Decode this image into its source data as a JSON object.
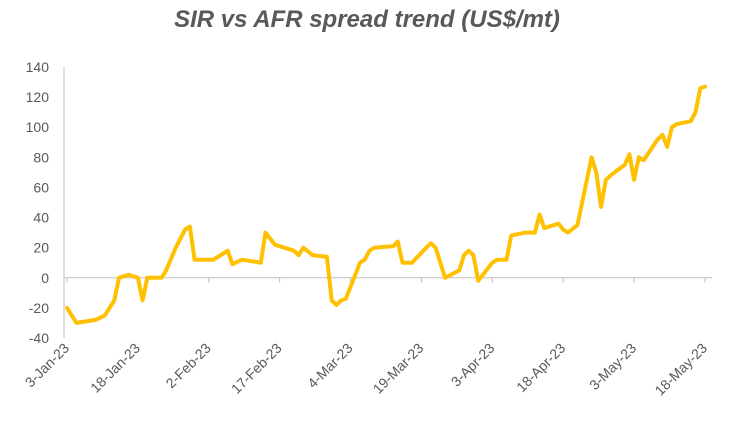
{
  "chart_data": {
    "type": "line",
    "title": "SIR vs AFR spread trend (US$/mt)",
    "xlabel": "",
    "ylabel": "",
    "ylim": [
      -40,
      140
    ],
    "yticks": [
      "140",
      "120",
      "100",
      "80",
      "60",
      "40",
      "20",
      "0",
      "-20",
      "-40"
    ],
    "xticks": [
      "3-Jan-23",
      "18-Jan-23",
      "2-Feb-23",
      "17-Feb-23",
      "4-Mar-23",
      "19-Mar-23",
      "3-Apr-23",
      "18-Apr-23",
      "3-May-23",
      "18-May-23"
    ],
    "xlim": [
      "2023-01-03",
      "2023-05-18"
    ],
    "grid": false,
    "legend": "none",
    "line_color": "#FFC000",
    "series": [
      {
        "points": [
          [
            "2023-01-03",
            -20
          ],
          [
            "2023-01-05",
            -30
          ],
          [
            "2023-01-09",
            -28
          ],
          [
            "2023-01-11",
            -25
          ],
          [
            "2023-01-13",
            -15
          ],
          [
            "2023-01-14",
            0
          ],
          [
            "2023-01-16",
            2
          ],
          [
            "2023-01-18",
            0
          ],
          [
            "2023-01-19",
            -15
          ],
          [
            "2023-01-20",
            0
          ],
          [
            "2023-01-23",
            0
          ],
          [
            "2023-01-24",
            5
          ],
          [
            "2023-01-26",
            20
          ],
          [
            "2023-01-28",
            32
          ],
          [
            "2023-01-29",
            34
          ],
          [
            "2023-01-30",
            12
          ],
          [
            "2023-01-31",
            12
          ],
          [
            "2023-02-03",
            12
          ],
          [
            "2023-02-06",
            18
          ],
          [
            "2023-02-07",
            9
          ],
          [
            "2023-02-09",
            12
          ],
          [
            "2023-02-13",
            10
          ],
          [
            "2023-02-14",
            30
          ],
          [
            "2023-02-16",
            22
          ],
          [
            "2023-02-20",
            18
          ],
          [
            "2023-02-21",
            15
          ],
          [
            "2023-02-22",
            20
          ],
          [
            "2023-02-24",
            15
          ],
          [
            "2023-02-27",
            14
          ],
          [
            "2023-02-28",
            -15
          ],
          [
            "2023-03-01",
            -18
          ],
          [
            "2023-03-02",
            -15
          ],
          [
            "2023-03-03",
            -14
          ],
          [
            "2023-03-06",
            10
          ],
          [
            "2023-03-07",
            12
          ],
          [
            "2023-03-08",
            18
          ],
          [
            "2023-03-09",
            20
          ],
          [
            "2023-03-13",
            21
          ],
          [
            "2023-03-14",
            24
          ],
          [
            "2023-03-15",
            10
          ],
          [
            "2023-03-16",
            10
          ],
          [
            "2023-03-17",
            10
          ],
          [
            "2023-03-20",
            20
          ],
          [
            "2023-03-21",
            23
          ],
          [
            "2023-03-22",
            20
          ],
          [
            "2023-03-23",
            10
          ],
          [
            "2023-03-24",
            0
          ],
          [
            "2023-03-27",
            5
          ],
          [
            "2023-03-28",
            15
          ],
          [
            "2023-03-29",
            18
          ],
          [
            "2023-03-30",
            15
          ],
          [
            "2023-03-31",
            -2
          ],
          [
            "2023-04-03",
            10
          ],
          [
            "2023-04-04",
            12
          ],
          [
            "2023-04-05",
            12
          ],
          [
            "2023-04-06",
            12
          ],
          [
            "2023-04-07",
            28
          ],
          [
            "2023-04-10",
            30
          ],
          [
            "2023-04-11",
            30
          ],
          [
            "2023-04-12",
            30
          ],
          [
            "2023-04-13",
            42
          ],
          [
            "2023-04-14",
            33
          ],
          [
            "2023-04-17",
            36
          ],
          [
            "2023-04-18",
            32
          ],
          [
            "2023-04-19",
            30
          ],
          [
            "2023-04-21",
            35
          ],
          [
            "2023-04-24",
            80
          ],
          [
            "2023-04-25",
            70
          ],
          [
            "2023-04-26",
            47
          ],
          [
            "2023-04-27",
            65
          ],
          [
            "2023-04-28",
            68
          ],
          [
            "2023-05-01",
            75
          ],
          [
            "2023-05-02",
            82
          ],
          [
            "2023-05-03",
            65
          ],
          [
            "2023-05-04",
            80
          ],
          [
            "2023-05-05",
            78
          ],
          [
            "2023-05-08",
            92
          ],
          [
            "2023-05-09",
            95
          ],
          [
            "2023-05-10",
            87
          ],
          [
            "2023-05-11",
            100
          ],
          [
            "2023-05-12",
            102
          ],
          [
            "2023-05-15",
            104
          ],
          [
            "2023-05-16",
            110
          ],
          [
            "2023-05-17",
            126
          ],
          [
            "2023-05-18",
            127
          ]
        ]
      }
    ]
  }
}
